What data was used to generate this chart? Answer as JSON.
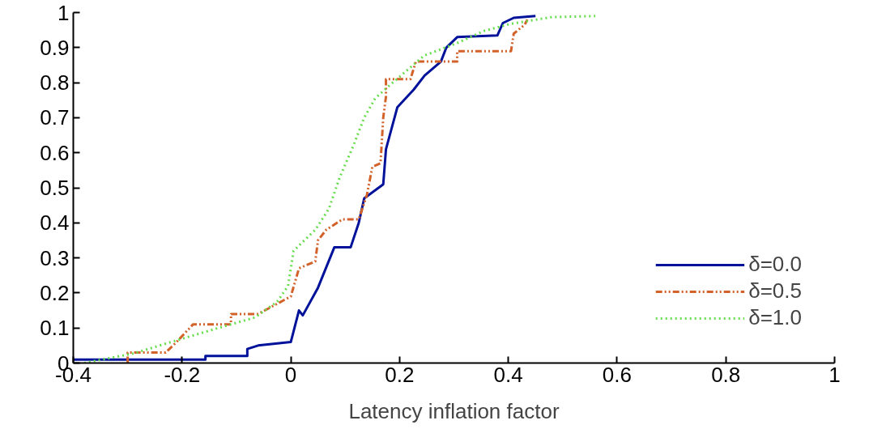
{
  "chart_data": {
    "type": "line",
    "xlabel": "Latency inflation factor",
    "xlim": [
      -0.4,
      1
    ],
    "ylim": [
      0,
      1
    ],
    "xticks": [
      -0.4,
      -0.2,
      0,
      0.2,
      0.4,
      0.6,
      0.8,
      1
    ],
    "yticks": [
      0,
      0.1,
      0.2,
      0.3,
      0.4,
      0.5,
      0.6,
      0.7,
      0.8,
      0.9,
      1
    ],
    "grid": false,
    "legend": "bottom right",
    "series": [
      {
        "name": "δ=0.0",
        "color": "#00129a",
        "line_style": "solid",
        "x": [
          -0.4,
          -0.157,
          -0.157,
          -0.08,
          -0.08,
          -0.06,
          0,
          0.015,
          0.022,
          0.05,
          0.08,
          0.11,
          0.125,
          0.135,
          0.17,
          0.175,
          0.196,
          0.226,
          0.246,
          0.276,
          0.286,
          0.306,
          0.38,
          0.39,
          0.41,
          0.45
        ],
        "values": [
          0.01,
          0.01,
          0.02,
          0.02,
          0.04,
          0.05,
          0.06,
          0.15,
          0.136,
          0.215,
          0.33,
          0.33,
          0.4,
          0.47,
          0.51,
          0.61,
          0.73,
          0.78,
          0.82,
          0.86,
          0.9,
          0.93,
          0.935,
          0.97,
          0.985,
          0.99
        ]
      },
      {
        "name": "δ=0.5",
        "color": "#d2622a",
        "line_style": "dashdot",
        "x": [
          -0.3,
          -0.3,
          -0.23,
          -0.21,
          -0.18,
          -0.11,
          -0.11,
          -0.06,
          0,
          0.015,
          0.045,
          0.05,
          0.065,
          0.095,
          0.125,
          0.14,
          0.15,
          0.165,
          0.17,
          0.175,
          0.175,
          0.22,
          0.23,
          0.306,
          0.306,
          0.405,
          0.41,
          0.43,
          0.435
        ],
        "values": [
          0,
          0.03,
          0.03,
          0.06,
          0.11,
          0.11,
          0.14,
          0.14,
          0.19,
          0.27,
          0.29,
          0.35,
          0.38,
          0.41,
          0.41,
          0.48,
          0.56,
          0.57,
          0.7,
          0.76,
          0.81,
          0.81,
          0.86,
          0.86,
          0.89,
          0.89,
          0.94,
          0.965,
          0.98
        ]
      },
      {
        "name": "δ=1.0",
        "color": "#66dd4c",
        "line_style": "dotted",
        "x": [
          -0.38,
          -0.29,
          -0.22,
          -0.14,
          -0.066,
          -0.025,
          -0.005,
          0.005,
          0.045,
          0.07,
          0.09,
          0.115,
          0.135,
          0.155,
          0.18,
          0.245,
          0.306,
          0.356,
          0.405,
          0.48,
          0.56
        ],
        "values": [
          0,
          0.027,
          0.06,
          0.097,
          0.13,
          0.175,
          0.22,
          0.32,
          0.38,
          0.44,
          0.53,
          0.62,
          0.7,
          0.755,
          0.79,
          0.877,
          0.913,
          0.948,
          0.968,
          0.987,
          0.99
        ]
      }
    ]
  }
}
